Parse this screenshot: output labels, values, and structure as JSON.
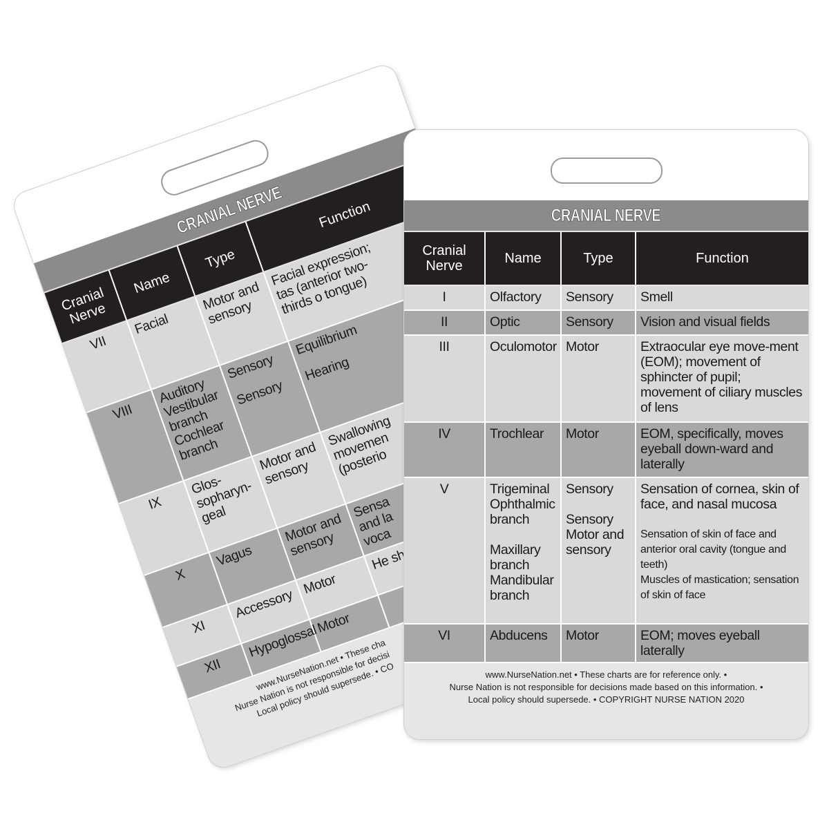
{
  "front": {
    "title": "CRANIAL NERVE",
    "headers": [
      "Cranial Nerve",
      "Name",
      "Type",
      "Function"
    ],
    "rows": [
      {
        "num": "I",
        "name": [
          "Olfactory"
        ],
        "type": [
          "Sensory"
        ],
        "function": [
          "Smell"
        ],
        "shade": "light"
      },
      {
        "num": "II",
        "name": [
          "Optic"
        ],
        "type": [
          "Sensory"
        ],
        "function": [
          "Vision and visual fields"
        ],
        "shade": "dark"
      },
      {
        "num": "III",
        "name": [
          "Oculomotor"
        ],
        "type": [
          "Motor"
        ],
        "function": [
          "Extraocular eye move-ment (EOM); movement of sphincter of pupil; movement of ciliary muscles of lens"
        ],
        "shade": "light"
      },
      {
        "num": "IV",
        "name": [
          "Trochlear"
        ],
        "type": [
          "Motor"
        ],
        "function": [
          "EOM, specifically, moves eyeball down-ward and laterally"
        ],
        "shade": "dark"
      },
      {
        "num": "V",
        "name": [
          "Trigeminal Ophthalmic branch",
          "Maxillary branch",
          "Mandibular branch"
        ],
        "type": [
          "Sensory",
          "Sensory",
          "Motor and sensory"
        ],
        "function": [
          "Sensation of cornea, skin of face, and nasal mucosa",
          "Sensation of skin of face and anterior oral cavity (tongue and teeth)",
          "Muscles of mastication; sensation of skin of face"
        ],
        "shade": "light"
      },
      {
        "num": "VI",
        "name": [
          "Abducens"
        ],
        "type": [
          "Motor"
        ],
        "function": [
          "EOM; moves eyeball laterally"
        ],
        "shade": "dark"
      }
    ],
    "footer": [
      "www.NurseNation.net • These charts are for reference only. •",
      "Nurse Nation is not responsible for decisions made based on this information. •",
      "Local policy should supersede. • COPYRIGHT NURSE NATION 2020"
    ]
  },
  "back": {
    "title": "CRANIAL NERVE",
    "headers": [
      "Cranial Nerve",
      "Name",
      "Type",
      "Function"
    ],
    "rows": [
      {
        "num": "VII",
        "name": [
          "Facial"
        ],
        "type": [
          "Motor and sensory"
        ],
        "function": [
          "Facial expression; tas (anterior two-thirds o tongue)"
        ],
        "shade": "light"
      },
      {
        "num": "VIII",
        "name": [
          "Auditory Vestibular branch Cochlear branch"
        ],
        "type": [
          "Sensory",
          "Sensory"
        ],
        "function": [
          "Equilibrium",
          "Hearing"
        ],
        "shade": "dark"
      },
      {
        "num": "IX",
        "name": [
          "Glos-sopharyn-geal"
        ],
        "type": [
          "Motor and sensory"
        ],
        "function": [
          "Swallowing movemen (posterio"
        ],
        "shade": "light"
      },
      {
        "num": "X",
        "name": [
          "Vagus"
        ],
        "type": [
          "Motor and sensory"
        ],
        "function": [
          "Sensa and la voca"
        ],
        "shade": "dark"
      },
      {
        "num": "XI",
        "name": [
          "Accessory"
        ],
        "type": [
          "Motor"
        ],
        "function": [
          "He sh"
        ],
        "shade": "light"
      },
      {
        "num": "XII",
        "name": [
          "Hypoglossal"
        ],
        "type": [
          "Motor"
        ],
        "function": [
          ""
        ],
        "shade": "dark"
      }
    ],
    "footer": [
      "www.NurseNation.net • These cha",
      "Nurse Nation is not responsible for decisi",
      "Local policy should supersede. • CO"
    ]
  }
}
